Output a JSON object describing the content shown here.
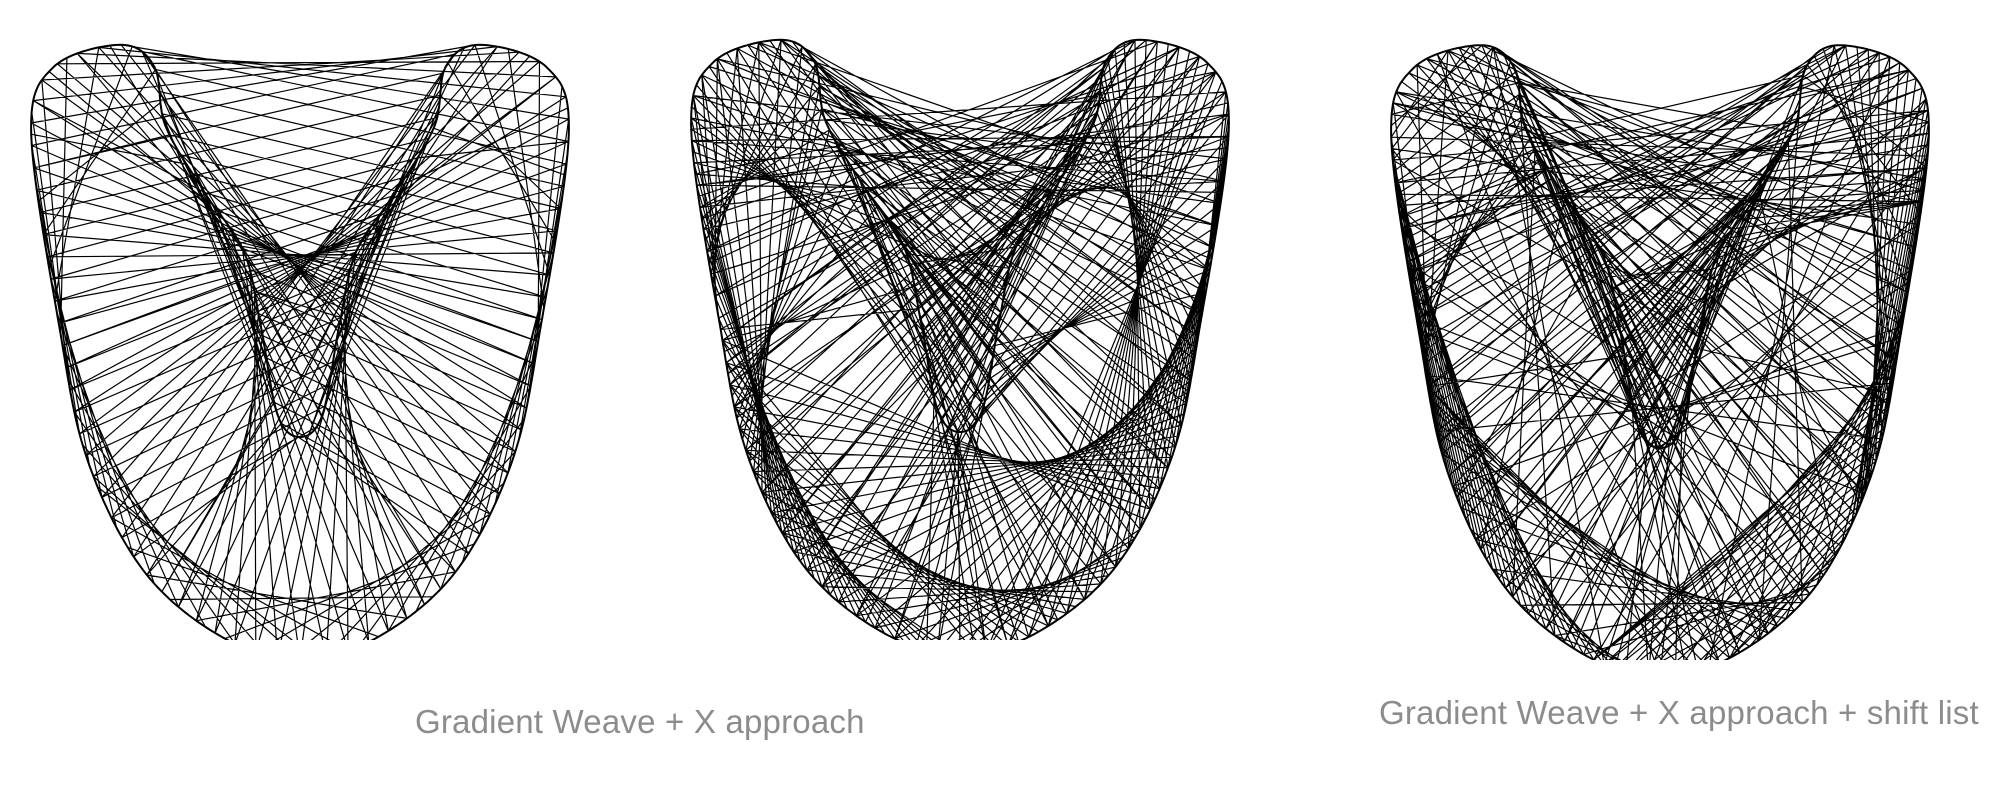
{
  "captions": {
    "first": "Gradient Weave + X approach",
    "second": "Gradient Weave + X approach + shift list"
  },
  "figures": [
    {
      "name": "weave-figure-left",
      "style": "open-lobes"
    },
    {
      "name": "weave-figure-middle",
      "style": "gradient-weave-x"
    },
    {
      "name": "weave-figure-right",
      "style": "gradient-weave-x-shift"
    }
  ],
  "colors": {
    "stroke": "#000000",
    "caption": "#8c8c8c",
    "background": "#ffffff"
  }
}
